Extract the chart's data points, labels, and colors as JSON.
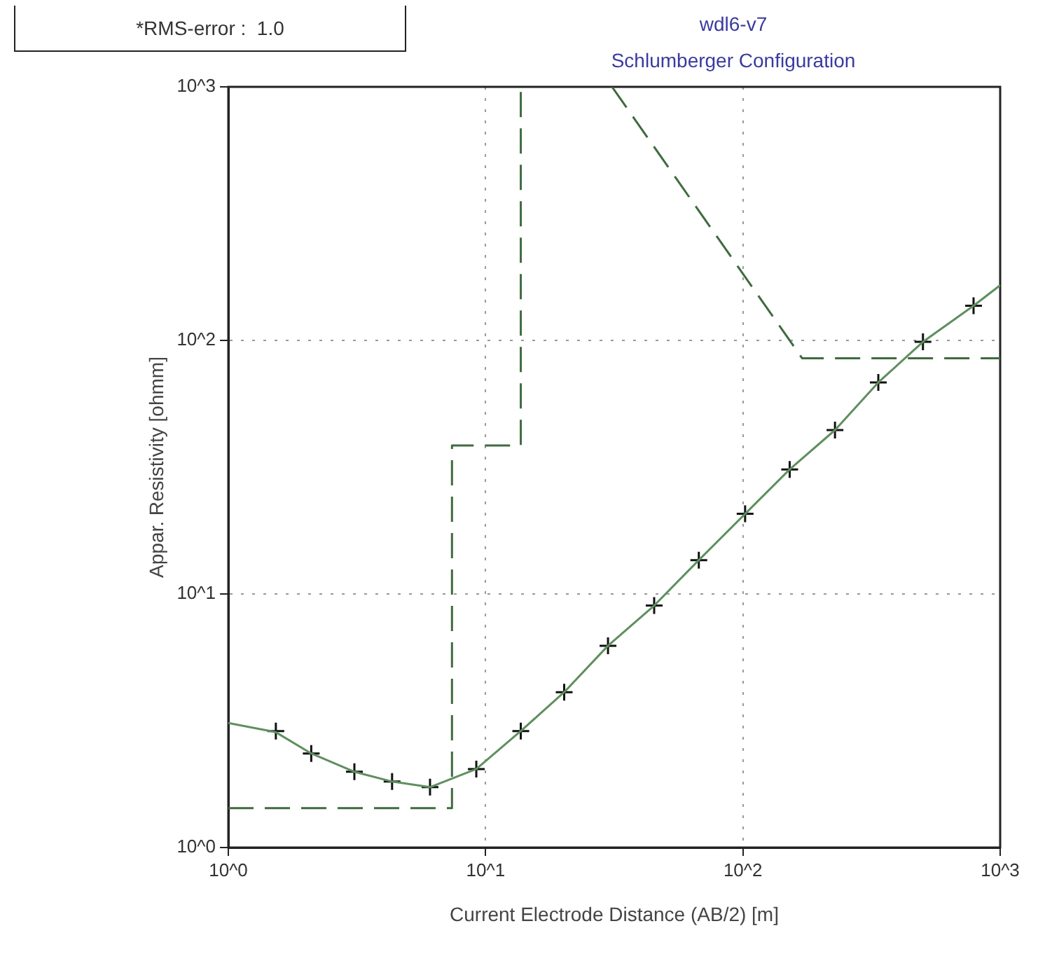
{
  "chart_data": {
    "type": "line",
    "title": "wdl6-v7",
    "subtitle": "Schlumberger Configuration",
    "xlabel": "Current Electrode Distance (AB/2) [m]",
    "ylabel": "Appar. Resistivity [ohmm]",
    "annotations": [
      "*RMS-error :  1.0"
    ],
    "log": "xy",
    "grid": true,
    "legend": false,
    "xlim": [
      1,
      1000
    ],
    "ylim": [
      1,
      1000
    ],
    "xticks": [
      {
        "value": 1,
        "label": "10^0"
      },
      {
        "value": 10,
        "label": "10^1"
      },
      {
        "value": 100,
        "label": "10^2"
      },
      {
        "value": 1000,
        "label": "10^3"
      }
    ],
    "yticks": [
      {
        "value": 1,
        "label": "10^0"
      },
      {
        "value": 10,
        "label": "10^1"
      },
      {
        "value": 100,
        "label": "10^2"
      },
      {
        "value": 1000,
        "label": "10^3"
      }
    ],
    "series": [
      {
        "type": "line",
        "color": "#5f8f5f",
        "line_style": "solid",
        "marker": "none",
        "x": [
          1,
          1.53,
          2.1,
          3.09,
          4.33,
          6.08,
          9.2,
          13.7,
          20.2,
          29.9,
          45.2,
          67.4,
          102,
          152,
          228,
          336,
          501,
          788,
          1000
        ],
        "values": [
          3.1,
          2.85,
          2.35,
          1.99,
          1.82,
          1.73,
          2.04,
          2.88,
          4.1,
          6.25,
          9.0,
          13.6,
          20.7,
          31.0,
          44.3,
          68.3,
          98.7,
          137,
          165
        ]
      },
      {
        "type": "scatter",
        "color": "#111111",
        "marker": "cross",
        "x": [
          1.53,
          2.1,
          3.09,
          4.33,
          6.08,
          9.2,
          13.7,
          20.2,
          29.9,
          45.2,
          67.4,
          102,
          152,
          228,
          336,
          501,
          788
        ],
        "values": [
          2.88,
          2.35,
          1.99,
          1.82,
          1.73,
          2.04,
          2.88,
          4.1,
          6.25,
          9.0,
          13.6,
          20.7,
          31.0,
          44.3,
          68.3,
          98.7,
          137
        ]
      },
      {
        "type": "line",
        "color": "#3f6b3f",
        "line_style": "dashed",
        "marker": "none",
        "x": [
          1,
          7.4,
          7.4,
          13.7,
          13.7
        ],
        "values": [
          1.43,
          1.43,
          38.5,
          38.5,
          1000
        ]
      },
      {
        "type": "line",
        "color": "#3f6b3f",
        "line_style": "dashed",
        "marker": "none",
        "x": [
          31,
          170,
          1000
        ],
        "values": [
          1000,
          85,
          85
        ]
      }
    ]
  }
}
